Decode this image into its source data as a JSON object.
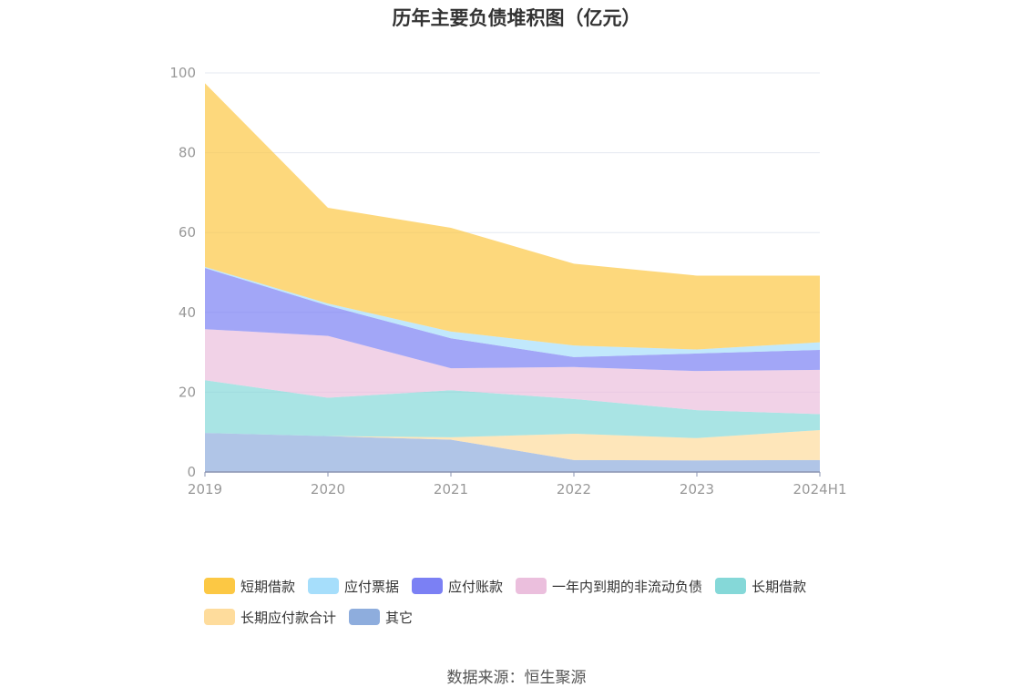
{
  "chart_data": {
    "type": "area",
    "stacked": true,
    "title": "历年主要负债堆积图（亿元）",
    "source": "数据来源：恒生聚源",
    "categories": [
      "2019",
      "2020",
      "2021",
      "2022",
      "2023",
      "2024H1"
    ],
    "ylim": [
      0,
      100
    ],
    "yticks": [
      "0",
      "20",
      "40",
      "60",
      "80",
      "100"
    ],
    "grid": true,
    "legend_position": "bottom",
    "series": [
      {
        "name": "短期借款",
        "color": "#fcc844",
        "values": [
          46.0,
          24.0,
          26.0,
          20.5,
          18.5,
          16.7
        ]
      },
      {
        "name": "应付票据",
        "color": "#a6defb",
        "values": [
          0.3,
          0.5,
          1.7,
          2.9,
          1.0,
          1.9
        ]
      },
      {
        "name": "应付账款",
        "color": "#7b80f4",
        "values": [
          15.3,
          7.6,
          7.5,
          2.5,
          4.4,
          5.0
        ]
      },
      {
        "name": "一年内到期的非流动负债",
        "color": "#ebbfdd",
        "values": [
          12.8,
          15.5,
          5.5,
          8.0,
          9.8,
          11.1
        ]
      },
      {
        "name": "长期借款",
        "color": "#85d8d8",
        "values": [
          13.2,
          9.6,
          11.8,
          8.7,
          7.0,
          4.0
        ]
      },
      {
        "name": "长期应付款合计",
        "color": "#fedc9c",
        "values": [
          0.0,
          0.0,
          0.6,
          6.6,
          5.6,
          7.5
        ]
      },
      {
        "name": "其它",
        "color": "#8eaddd",
        "values": [
          9.8,
          9.0,
          8.1,
          3.0,
          2.9,
          3.0
        ]
      }
    ]
  }
}
